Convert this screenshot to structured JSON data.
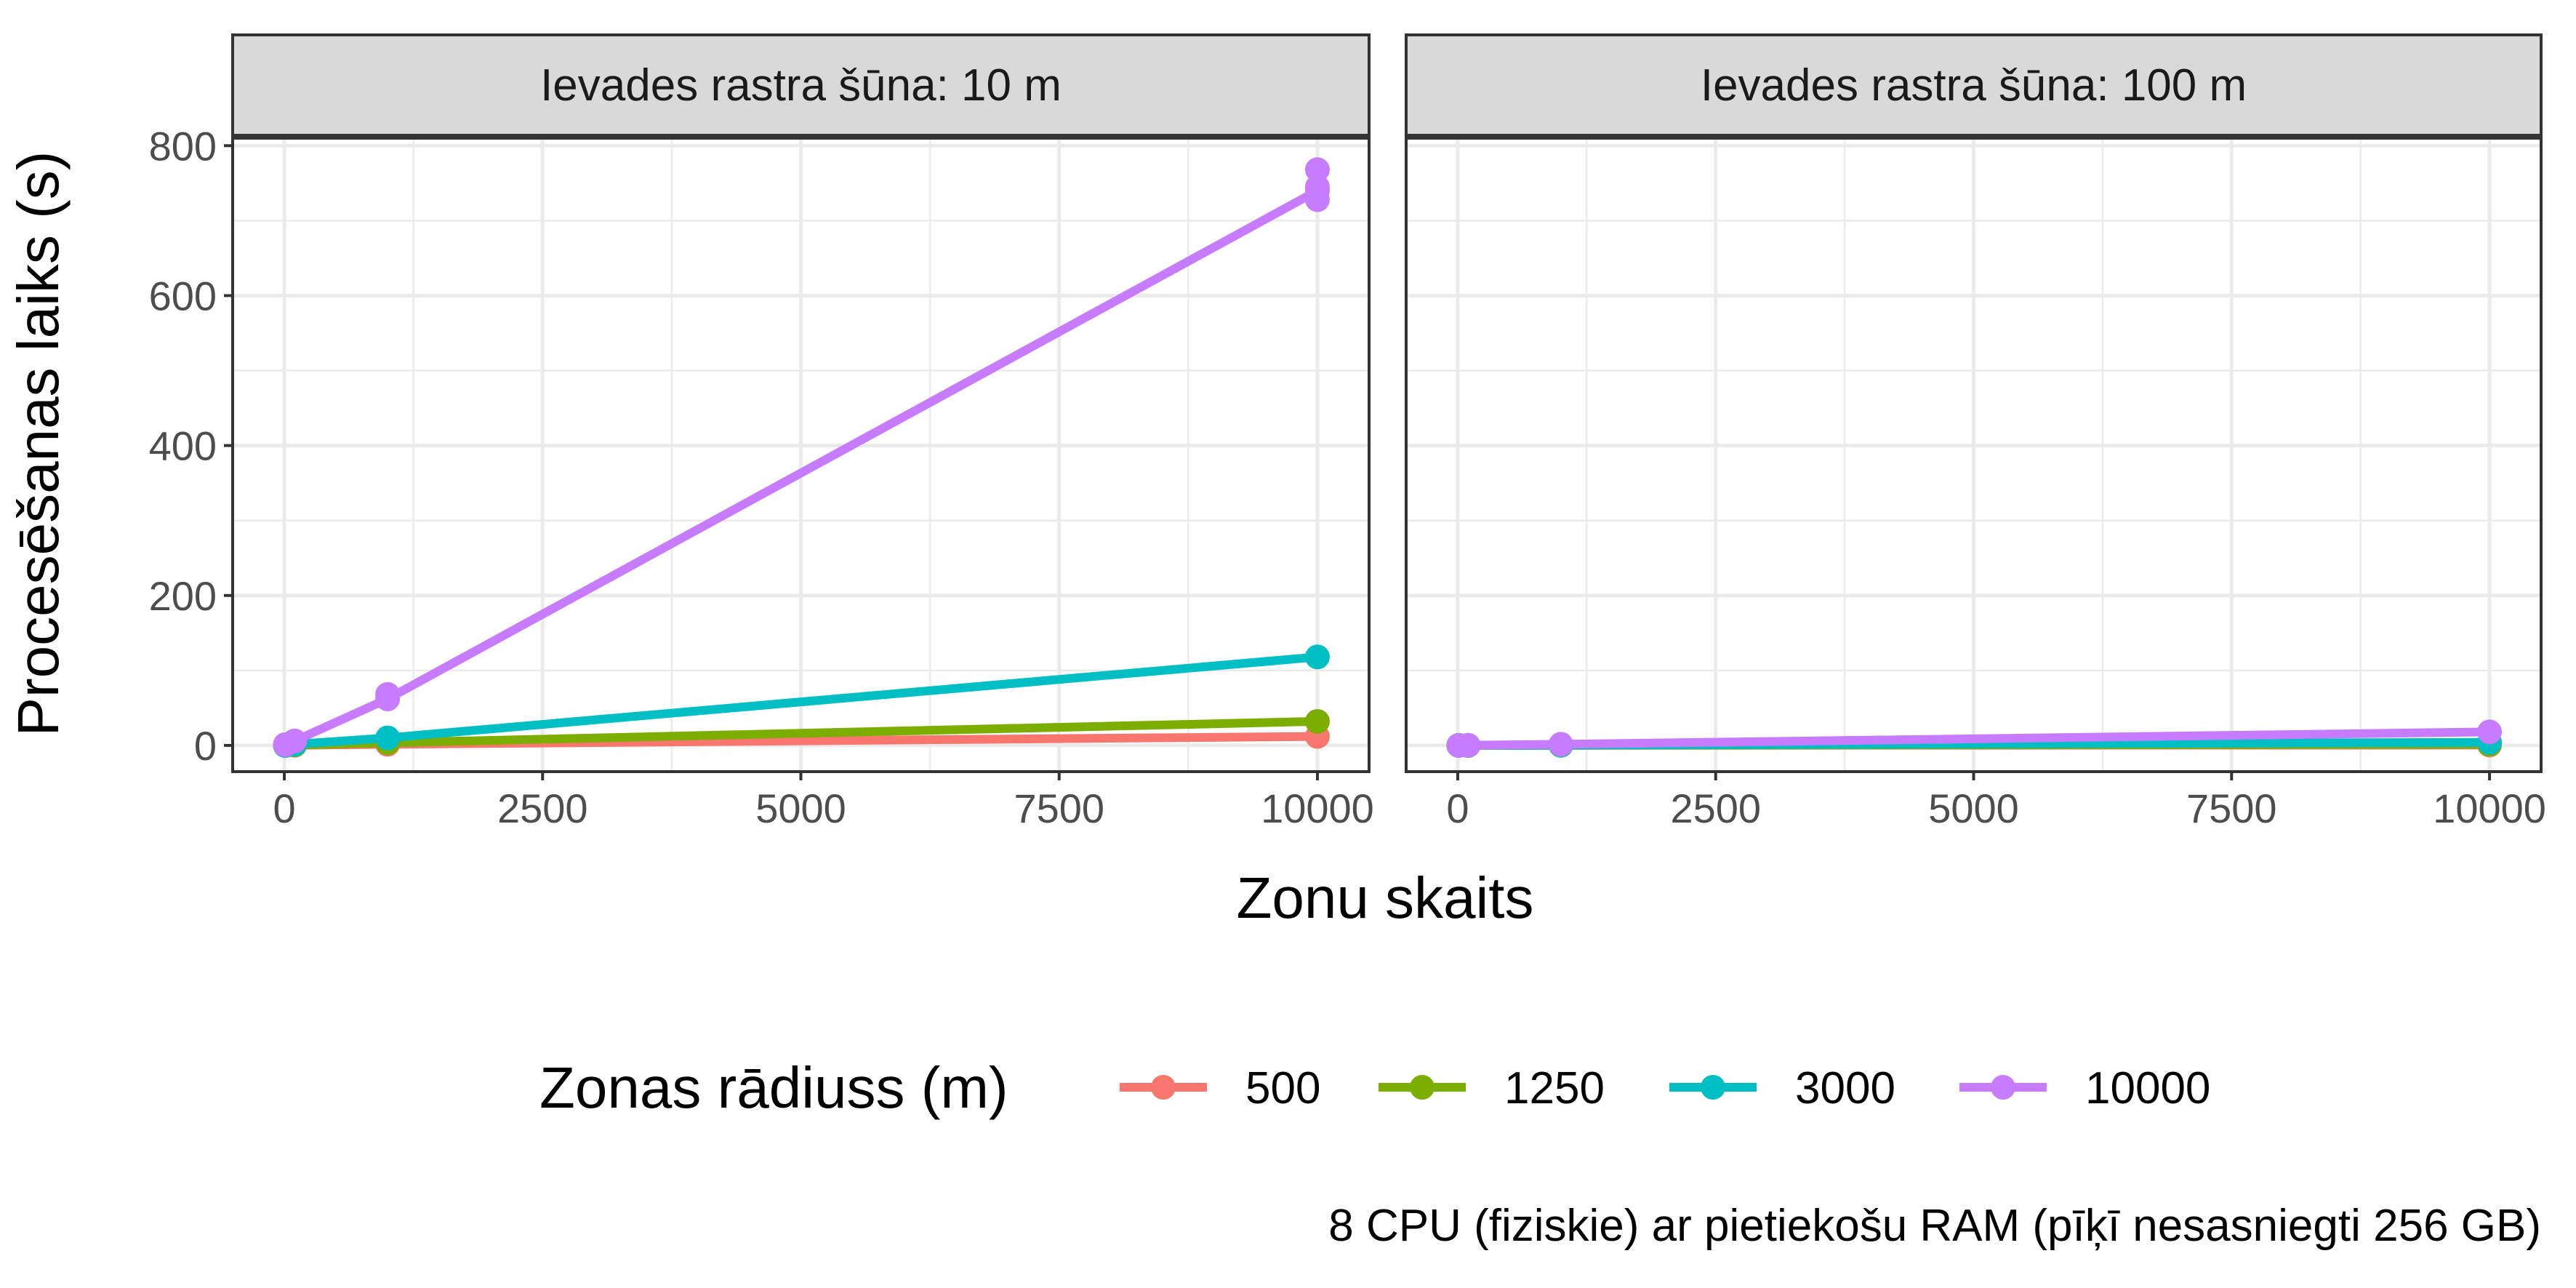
{
  "chart_data": {
    "type": "line",
    "ylabel": "Procesēšanas laiks (s)",
    "xlabel": "Zonu skaits",
    "legend_title": "Zonas rādiuss (m)",
    "legend_position": "bottom",
    "caption": "8 CPU (fiziskie) ar pietiekošu RAM (pīķī nesasniegti 256 GB)",
    "grid": true,
    "xlim": [
      -500,
      10500
    ],
    "ylim": [
      -35,
      810
    ],
    "x_ticks": [
      0,
      2500,
      5000,
      7500,
      10000
    ],
    "y_ticks": [
      0,
      200,
      400,
      600,
      800
    ],
    "series_colors": {
      "500": "#F8766D",
      "1250": "#7CAE00",
      "3000": "#00BFC4",
      "10000": "#C77CFF"
    },
    "legend": [
      "500",
      "1250",
      "3000",
      "10000"
    ],
    "panels": [
      {
        "strip": "Ievades rastra šūna: 10 m",
        "series": [
          {
            "name": "500",
            "x": [
              10,
              100,
              1000,
              10000
            ],
            "y": [
              0,
              0.2,
              1.5,
              12
            ]
          },
          {
            "name": "1250",
            "x": [
              10,
              100,
              1000,
              10000
            ],
            "y": [
              0,
              0.5,
              3.5,
              32
            ]
          },
          {
            "name": "3000",
            "x": [
              10,
              100,
              1000,
              10000
            ],
            "y": [
              0,
              1.5,
              10,
              118
            ]
          },
          {
            "name": "10000",
            "x": [
              10,
              100,
              1000,
              10000
            ],
            "y": [
              1,
              6,
              62,
              740
            ]
          }
        ],
        "extra_points": [
          {
            "name": "10000",
            "x": [
              1000,
              10000,
              10000,
              10000
            ],
            "y": [
              68,
              768,
              745,
              728
            ]
          }
        ]
      },
      {
        "strip": "Ievades rastra šūna: 100 m",
        "series": [
          {
            "name": "500",
            "x": [
              10,
              100,
              1000,
              10000
            ],
            "y": [
              0,
              0,
              0.1,
              0.5
            ]
          },
          {
            "name": "1250",
            "x": [
              10,
              100,
              1000,
              10000
            ],
            "y": [
              0,
              0,
              0.2,
              1.5
            ]
          },
          {
            "name": "3000",
            "x": [
              10,
              100,
              1000,
              10000
            ],
            "y": [
              0,
              0,
              0.4,
              4
            ]
          },
          {
            "name": "10000",
            "x": [
              10,
              100,
              1000,
              10000
            ],
            "y": [
              0,
              0.2,
              1.5,
              18
            ]
          }
        ],
        "extra_points": []
      }
    ]
  }
}
